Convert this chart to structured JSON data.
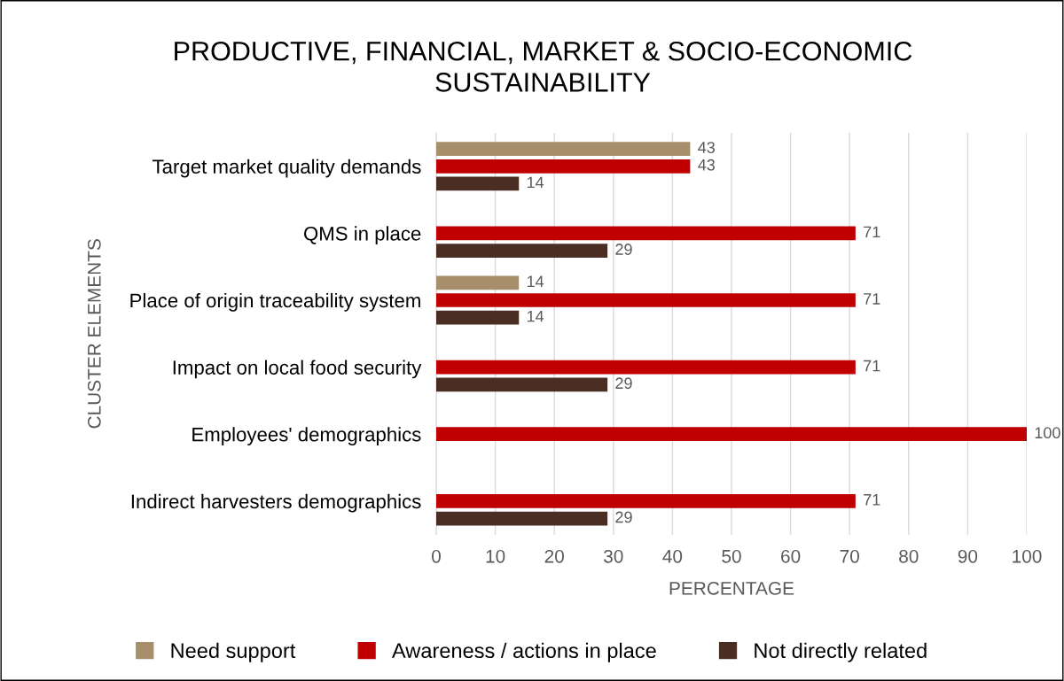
{
  "chart_data": {
    "type": "bar",
    "orientation": "horizontal",
    "title": "PRODUCTIVE, FINANCIAL, MARKET & SOCIO-ECONOMIC\nSUSTAINABILITY",
    "xlabel": "PERCENTAGE",
    "ylabel": "CLUSTER ELEMENTS",
    "categories": [
      "Target market quality demands",
      "QMS in place",
      "Place of origin traceability system",
      "Impact on local food security",
      "Employees' demographics",
      "Indirect harvesters demographics"
    ],
    "series": [
      {
        "name": "Need support",
        "color": "#a68f6a",
        "values": [
          43,
          null,
          14,
          null,
          null,
          null
        ]
      },
      {
        "name": "Awareness / actions in place",
        "color": "#c00000",
        "values": [
          43,
          71,
          71,
          71,
          100,
          71
        ]
      },
      {
        "name": "Not directly related",
        "color": "#4a2e24",
        "values": [
          14,
          29,
          14,
          29,
          null,
          29
        ]
      }
    ],
    "xlim": [
      0,
      100
    ],
    "xticks": [
      0,
      10,
      20,
      30,
      40,
      50,
      60,
      70,
      80,
      90,
      100
    ],
    "grid": "x",
    "legend": "bottom",
    "data_labels": true
  }
}
